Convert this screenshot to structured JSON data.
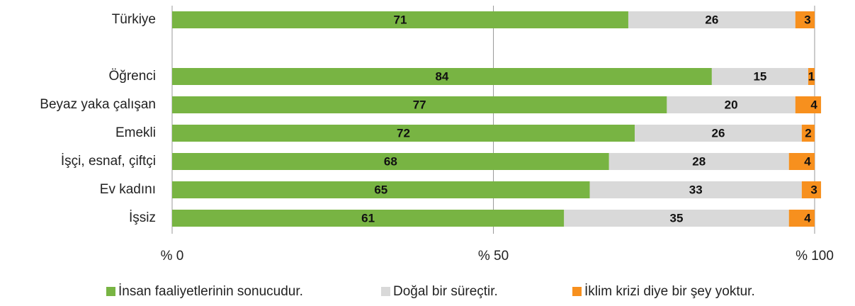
{
  "chart_data": {
    "type": "stacked-barh",
    "categories": [
      "Türkiye",
      null,
      "Öğrenci",
      "Beyaz yaka çalışan",
      "Emekli",
      "İşçi, esnaf, çiftçi",
      "Ev kadını",
      "İşsiz"
    ],
    "series": [
      {
        "name": "İnsan faaliyetlerinin sonucudur.",
        "color": "#78b443",
        "values": [
          71,
          null,
          84,
          77,
          72,
          68,
          65,
          61
        ]
      },
      {
        "name": "Doğal bir süreçtir.",
        "color": "#d9d9d9",
        "values": [
          26,
          null,
          15,
          20,
          26,
          28,
          33,
          35
        ]
      },
      {
        "name": "İklim krizi diye bir şey yoktur.",
        "color": "#f7901e",
        "values": [
          3,
          null,
          1,
          4,
          2,
          4,
          3,
          4
        ]
      }
    ],
    "xlim": [
      0,
      100
    ],
    "xticks": [
      {
        "value": 0,
        "label": "% 0"
      },
      {
        "value": 50,
        "label": "% 50"
      },
      {
        "value": 100,
        "label": "% 100"
      }
    ],
    "grid": true,
    "legend": "bottom"
  }
}
